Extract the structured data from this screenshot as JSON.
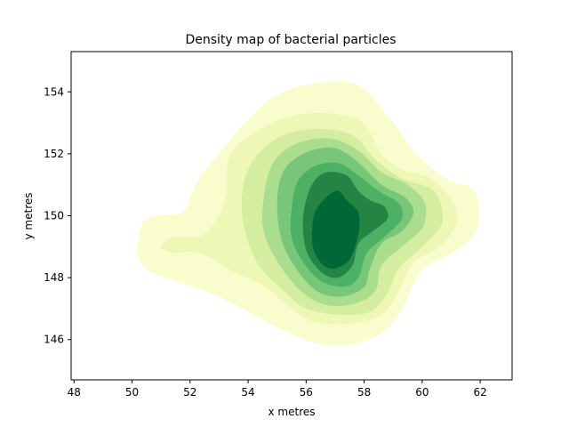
{
  "chart_data": {
    "type": "contourf",
    "title": "Density map of bacterial particles",
    "xlabel": "x metres",
    "ylabel": "y metres",
    "xlim": [
      47.9,
      63.1
    ],
    "ylim": [
      144.7,
      155.3
    ],
    "xticks": [
      "48",
      "50",
      "52",
      "54",
      "56",
      "58",
      "60",
      "62"
    ],
    "xtick_values": [
      48,
      50,
      52,
      54,
      56,
      58,
      60,
      62
    ],
    "yticks": [
      "146",
      "148",
      "150",
      "152",
      "154"
    ],
    "ytick_values": [
      146,
      148,
      150,
      152,
      154
    ],
    "colormap": "YlGn",
    "grid": false,
    "levels": [
      {
        "level": 1,
        "color": "#f9fdcd",
        "points": [
          [
            50.2,
            149.1
          ],
          [
            50.5,
            149.9
          ],
          [
            51.7,
            150.1
          ],
          [
            52.0,
            150.6
          ],
          [
            52.3,
            151.2
          ],
          [
            53.0,
            152.0
          ],
          [
            53.9,
            153.0
          ],
          [
            55.0,
            153.9
          ],
          [
            56.5,
            154.3
          ],
          [
            57.8,
            154.2
          ],
          [
            59.0,
            153.0
          ],
          [
            59.8,
            152.0
          ],
          [
            60.8,
            151.2
          ],
          [
            61.8,
            150.8
          ],
          [
            61.9,
            149.6
          ],
          [
            61.2,
            148.9
          ],
          [
            60.2,
            148.4
          ],
          [
            59.8,
            148.0
          ],
          [
            59.2,
            146.8
          ],
          [
            58.4,
            146.1
          ],
          [
            57.2,
            145.8
          ],
          [
            56.3,
            145.9
          ],
          [
            55.2,
            146.3
          ],
          [
            54.0,
            146.9
          ],
          [
            52.7,
            147.5
          ],
          [
            51.5,
            147.9
          ],
          [
            50.6,
            148.2
          ],
          [
            50.2,
            148.7
          ]
        ]
      },
      {
        "level": 2,
        "color": "#edf8b6",
        "points": [
          [
            51.0,
            149.0
          ],
          [
            51.4,
            149.3
          ],
          [
            52.5,
            149.4
          ],
          [
            53.2,
            150.5
          ],
          [
            53.4,
            152.0
          ],
          [
            54.6,
            152.9
          ],
          [
            56.0,
            153.3
          ],
          [
            57.8,
            153.1
          ],
          [
            58.6,
            152.0
          ],
          [
            59.3,
            151.5
          ],
          [
            60.3,
            151.2
          ],
          [
            61.0,
            150.5
          ],
          [
            61.2,
            149.8
          ],
          [
            60.6,
            149.0
          ],
          [
            59.7,
            148.5
          ],
          [
            59.2,
            147.6
          ],
          [
            58.6,
            146.8
          ],
          [
            57.4,
            146.5
          ],
          [
            56.2,
            146.6
          ],
          [
            55.5,
            147.0
          ],
          [
            54.6,
            147.7
          ],
          [
            53.5,
            148.2
          ],
          [
            52.3,
            148.8
          ],
          [
            51.4,
            148.8
          ]
        ]
      },
      {
        "level": 3,
        "color": "#d4eda1",
        "points": [
          [
            53.8,
            150.0
          ],
          [
            54.0,
            151.5
          ],
          [
            55.0,
            152.5
          ],
          [
            56.3,
            152.8
          ],
          [
            57.6,
            152.6
          ],
          [
            58.4,
            151.8
          ],
          [
            59.3,
            151.2
          ],
          [
            60.4,
            150.8
          ],
          [
            60.7,
            149.8
          ],
          [
            60.0,
            149.0
          ],
          [
            59.2,
            148.3
          ],
          [
            58.8,
            147.5
          ],
          [
            58.2,
            146.9
          ],
          [
            57.2,
            146.8
          ],
          [
            56.0,
            147.0
          ],
          [
            55.2,
            147.6
          ],
          [
            54.3,
            148.5
          ]
        ]
      },
      {
        "level": 4,
        "color": "#aadd8e",
        "points": [
          [
            54.5,
            150.2
          ],
          [
            54.8,
            151.6
          ],
          [
            55.6,
            152.3
          ],
          [
            56.8,
            152.5
          ],
          [
            57.8,
            152.1
          ],
          [
            58.6,
            151.4
          ],
          [
            59.5,
            151.0
          ],
          [
            60.1,
            150.4
          ],
          [
            60.0,
            149.6
          ],
          [
            59.3,
            149.0
          ],
          [
            58.6,
            148.4
          ],
          [
            58.4,
            147.6
          ],
          [
            57.8,
            147.2
          ],
          [
            56.8,
            147.1
          ],
          [
            55.9,
            147.5
          ],
          [
            55.1,
            148.4
          ],
          [
            54.6,
            149.3
          ]
        ]
      },
      {
        "level": 5,
        "color": "#78c679",
        "points": [
          [
            55.0,
            150.3
          ],
          [
            55.2,
            151.4
          ],
          [
            55.9,
            152.0
          ],
          [
            56.9,
            152.2
          ],
          [
            57.7,
            151.8
          ],
          [
            58.6,
            151.0
          ],
          [
            59.4,
            150.6
          ],
          [
            59.7,
            150.1
          ],
          [
            59.3,
            149.5
          ],
          [
            58.6,
            149.1
          ],
          [
            58.2,
            148.3
          ],
          [
            58.0,
            147.7
          ],
          [
            57.3,
            147.4
          ],
          [
            56.5,
            147.5
          ],
          [
            55.8,
            148.1
          ],
          [
            55.2,
            149.1
          ]
        ]
      },
      {
        "level": 6,
        "color": "#4cb163",
        "points": [
          [
            55.5,
            150.2
          ],
          [
            55.7,
            151.1
          ],
          [
            56.3,
            151.6
          ],
          [
            57.1,
            151.7
          ],
          [
            57.8,
            151.3
          ],
          [
            58.5,
            150.8
          ],
          [
            59.2,
            150.4
          ],
          [
            59.3,
            149.9
          ],
          [
            58.8,
            149.4
          ],
          [
            58.1,
            148.8
          ],
          [
            57.8,
            148.0
          ],
          [
            57.3,
            147.7
          ],
          [
            56.5,
            147.9
          ],
          [
            55.9,
            148.5
          ],
          [
            55.5,
            149.3
          ]
        ]
      },
      {
        "level": 7,
        "color": "#238443",
        "points": [
          [
            55.9,
            150.0
          ],
          [
            56.2,
            151.0
          ],
          [
            56.7,
            151.4
          ],
          [
            57.4,
            151.3
          ],
          [
            57.8,
            150.8
          ],
          [
            58.2,
            150.5
          ],
          [
            58.7,
            150.3
          ],
          [
            58.8,
            149.9
          ],
          [
            58.3,
            149.5
          ],
          [
            57.8,
            149.1
          ],
          [
            57.6,
            148.4
          ],
          [
            57.1,
            148.0
          ],
          [
            56.5,
            148.2
          ],
          [
            56.0,
            148.9
          ]
        ]
      },
      {
        "level": 8,
        "color": "#006837",
        "points": [
          [
            56.2,
            149.3
          ],
          [
            56.3,
            150.1
          ],
          [
            56.7,
            150.6
          ],
          [
            57.1,
            150.8
          ],
          [
            57.4,
            150.5
          ],
          [
            57.8,
            150.1
          ],
          [
            57.8,
            149.4
          ],
          [
            57.5,
            148.6
          ],
          [
            57.0,
            148.3
          ],
          [
            56.6,
            148.4
          ],
          [
            56.3,
            148.8
          ]
        ]
      }
    ]
  }
}
